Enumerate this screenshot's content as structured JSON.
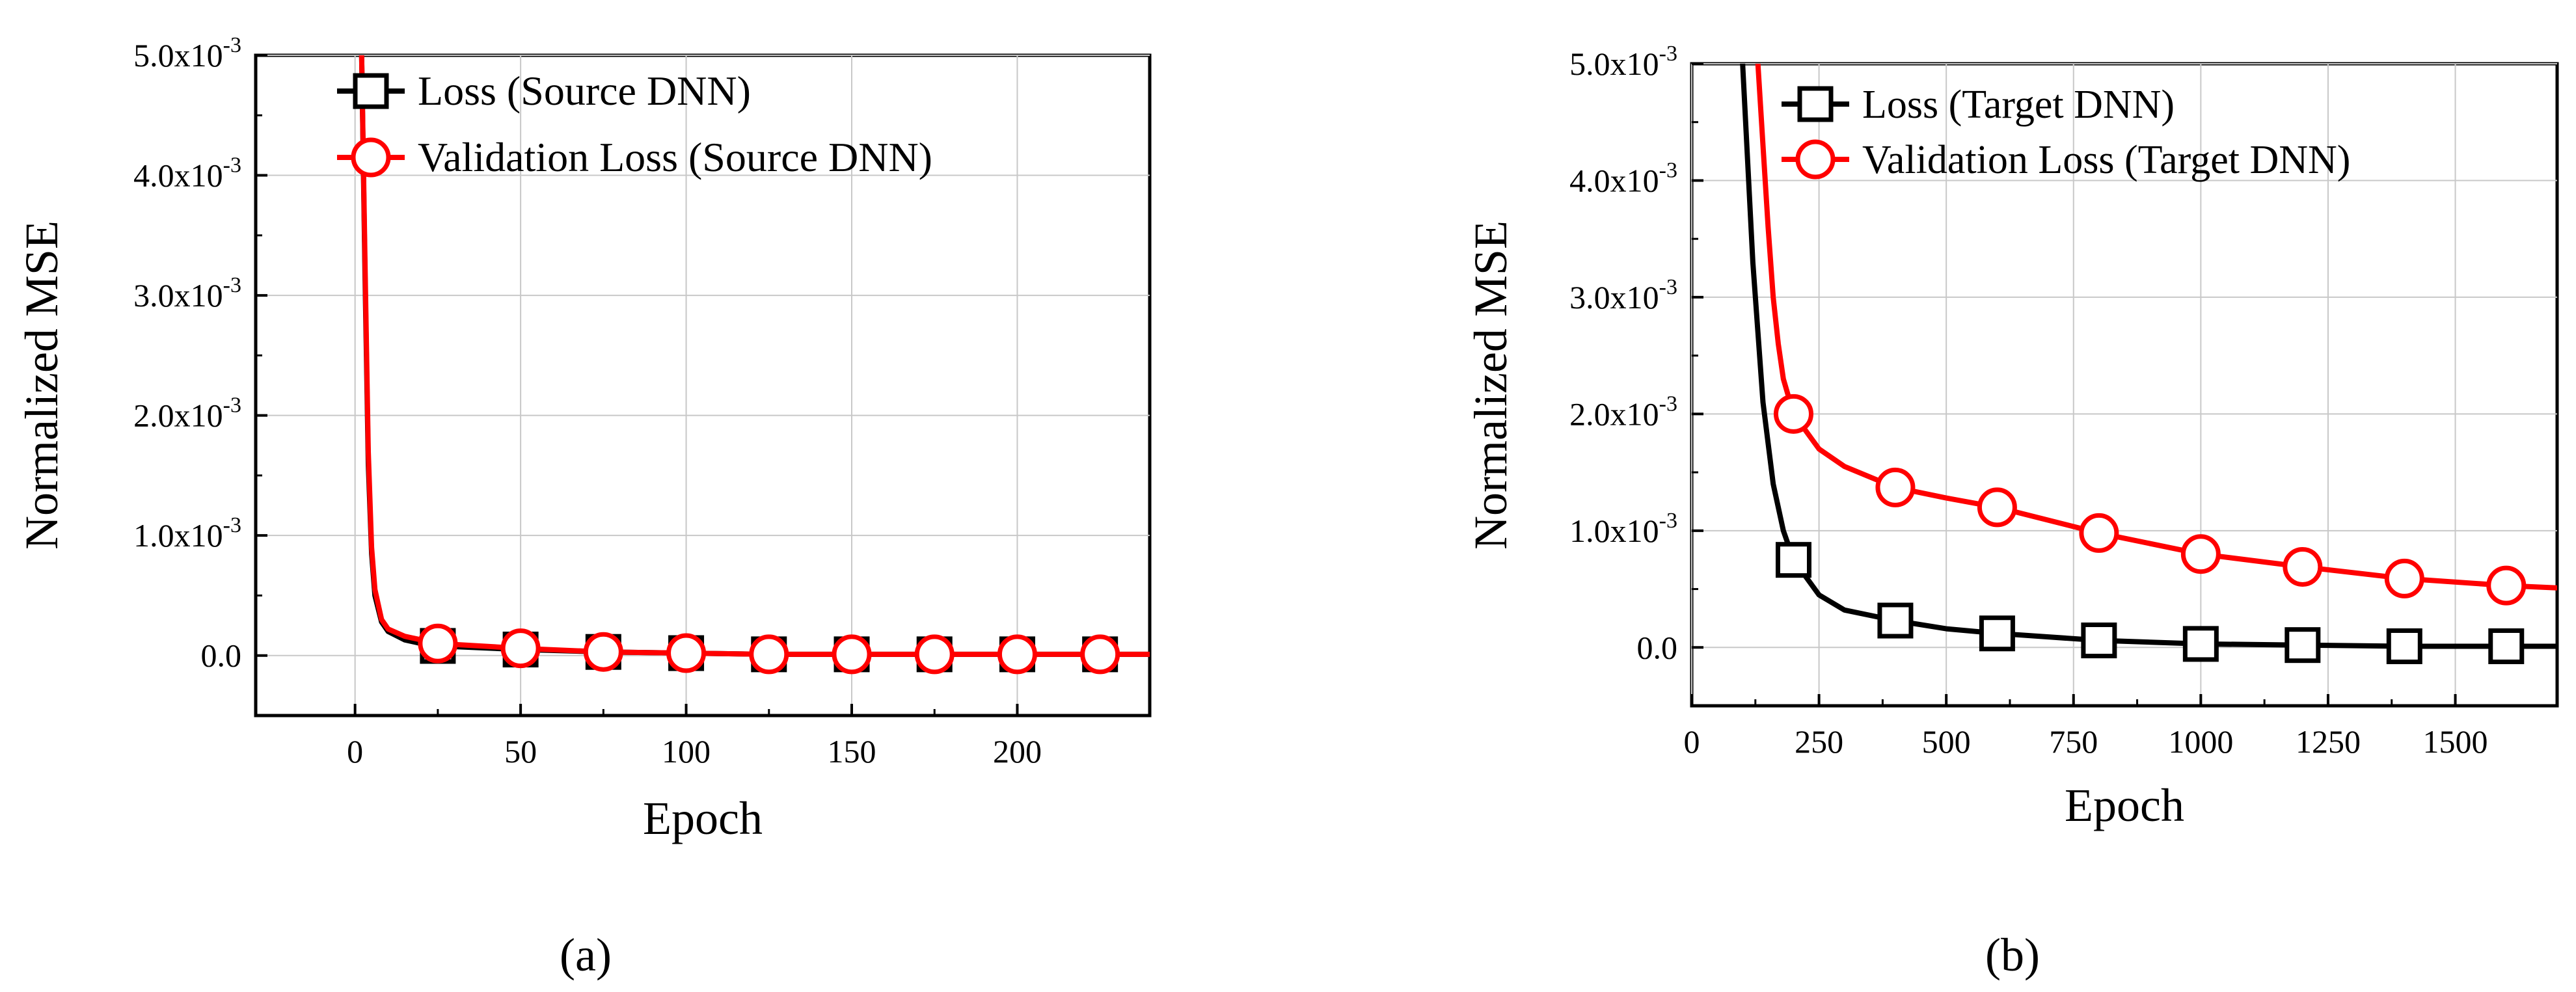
{
  "chart_data": [
    {
      "type": "line",
      "panel_label": "(a)",
      "xlabel": "Epoch",
      "ylabel": "Normalized MSE",
      "xlim": [
        -30,
        240
      ],
      "ylim": [
        -0.0005,
        0.005
      ],
      "xticks": [
        0,
        50,
        100,
        150,
        200
      ],
      "yticks": [
        {
          "value": 0.0,
          "mant": "0.0",
          "exp": ""
        },
        {
          "value": 0.001,
          "mant": "1.0x10",
          "exp": "-3"
        },
        {
          "value": 0.002,
          "mant": "2.0x10",
          "exp": "-3"
        },
        {
          "value": 0.003,
          "mant": "3.0x10",
          "exp": "-3"
        },
        {
          "value": 0.004,
          "mant": "4.0x10",
          "exp": "-3"
        },
        {
          "value": 0.005,
          "mant": "5.0x10",
          "exp": "-3"
        }
      ],
      "grid": true,
      "legend_position": "top-right",
      "series": [
        {
          "name": "Loss (Source DNN)",
          "color": "#000000",
          "marker": "square",
          "x": [
            2,
            3,
            4,
            5,
            6,
            8,
            10,
            15,
            20,
            25,
            50,
            75,
            100,
            125,
            150,
            175,
            200,
            225,
            240
          ],
          "y": [
            0.005,
            0.0032,
            0.0016,
            0.00085,
            0.0005,
            0.00028,
            0.0002,
            0.00013,
            0.0001,
            8e-05,
            5e-05,
            3e-05,
            2e-05,
            1e-05,
            1e-05,
            1e-05,
            1e-05,
            1e-05,
            1e-05
          ],
          "marker_x": [
            25,
            50,
            75,
            100,
            125,
            150,
            175,
            200,
            225
          ],
          "marker_y": [
            8e-05,
            5e-05,
            3e-05,
            2e-05,
            1e-05,
            1e-05,
            1e-05,
            1e-05,
            1e-05
          ]
        },
        {
          "name": "Validation Loss (Source DNN)",
          "color": "#ff0000",
          "marker": "circle",
          "x": [
            2,
            3,
            4,
            5,
            6,
            8,
            10,
            15,
            20,
            25,
            50,
            75,
            100,
            125,
            150,
            175,
            200,
            225,
            240
          ],
          "y": [
            0.005,
            0.0033,
            0.0017,
            0.0009,
            0.00055,
            0.0003,
            0.00022,
            0.00016,
            0.00013,
            0.0001,
            6e-05,
            3e-05,
            2e-05,
            1e-05,
            1e-05,
            1e-05,
            1e-05,
            1e-05,
            1e-05
          ],
          "marker_x": [
            25,
            50,
            75,
            100,
            125,
            150,
            175,
            200,
            225
          ],
          "marker_y": [
            0.0001,
            6e-05,
            3e-05,
            2e-05,
            1e-05,
            1e-05,
            1e-05,
            1e-05,
            1e-05
          ]
        }
      ]
    },
    {
      "type": "line",
      "panel_label": "(b)",
      "xlabel": "Epoch",
      "ylabel": "Normalized MSE",
      "xlim": [
        0,
        1700
      ],
      "ylim": [
        -0.0005,
        0.005
      ],
      "xticks": [
        0,
        250,
        500,
        750,
        1000,
        1250,
        1500
      ],
      "yticks": [
        {
          "value": 0.0,
          "mant": "0.0",
          "exp": ""
        },
        {
          "value": 0.001,
          "mant": "1.0x10",
          "exp": "-3"
        },
        {
          "value": 0.002,
          "mant": "2.0x10",
          "exp": "-3"
        },
        {
          "value": 0.003,
          "mant": "3.0x10",
          "exp": "-3"
        },
        {
          "value": 0.004,
          "mant": "4.0x10",
          "exp": "-3"
        },
        {
          "value": 0.005,
          "mant": "5.0x10",
          "exp": "-3"
        }
      ],
      "grid": true,
      "legend_position": "top-right",
      "series": [
        {
          "name": "Loss (Target DNN)",
          "color": "#000000",
          "marker": "square",
          "x": [
            100,
            120,
            140,
            160,
            180,
            200,
            250,
            300,
            400,
            500,
            600,
            800,
            1000,
            1200,
            1400,
            1600,
            1700
          ],
          "y": [
            0.005,
            0.0033,
            0.0021,
            0.0014,
            0.001,
            0.00075,
            0.00045,
            0.00032,
            0.00023,
            0.00016,
            0.00012,
            6e-05,
            3e-05,
            2e-05,
            1e-05,
            1e-05,
            1e-05
          ],
          "marker_x": [
            200,
            400,
            600,
            800,
            1000,
            1200,
            1400,
            1600
          ],
          "marker_y": [
            0.00075,
            0.00023,
            0.00012,
            6e-05,
            3e-05,
            2e-05,
            1e-05,
            1e-05
          ]
        },
        {
          "name": "Validation Loss (Target DNN)",
          "color": "#ff0000",
          "marker": "circle",
          "x": [
            130,
            140,
            150,
            160,
            170,
            180,
            200,
            250,
            300,
            400,
            500,
            600,
            800,
            1000,
            1200,
            1400,
            1600,
            1700
          ],
          "y": [
            0.005,
            0.0043,
            0.0036,
            0.003,
            0.0026,
            0.0023,
            0.002,
            0.0017,
            0.00155,
            0.00137,
            0.00128,
            0.0012,
            0.00098,
            0.0008,
            0.00069,
            0.00059,
            0.00053,
            0.00051
          ],
          "marker_x": [
            200,
            400,
            600,
            800,
            1000,
            1200,
            1400,
            1600
          ],
          "marker_y": [
            0.002,
            0.00137,
            0.0012,
            0.00098,
            0.0008,
            0.00069,
            0.00059,
            0.00053
          ]
        }
      ]
    }
  ]
}
